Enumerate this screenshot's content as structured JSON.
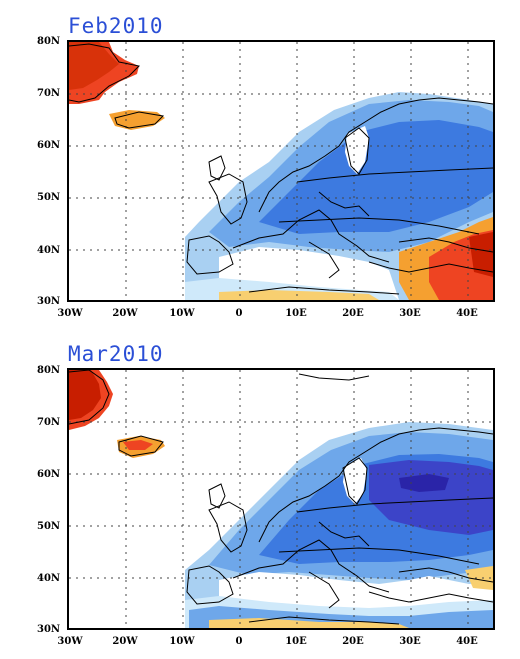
{
  "panels": [
    {
      "title": "Feb2010",
      "lat_labels": [
        "80N",
        "70N",
        "60N",
        "50N",
        "40N",
        "30N"
      ],
      "lon_labels": [
        "30W",
        "20W",
        "10W",
        "0",
        "10E",
        "20E",
        "30E",
        "40E"
      ]
    },
    {
      "title": "Mar2010",
      "lat_labels": [
        "80N",
        "70N",
        "60N",
        "50N",
        "40N",
        "30N"
      ],
      "lon_labels": [
        "30W",
        "20W",
        "10W",
        "0",
        "10E",
        "20E",
        "30E",
        "40E"
      ]
    }
  ],
  "colors": {
    "title": "#2b4fd6",
    "dark_red": "#c81e00",
    "red": "#ee4422",
    "orange": "#f5a030",
    "light_orange": "#f8cf70",
    "very_light_blue": "#cfe9fa",
    "light_blue": "#a9d0f2",
    "blue": "#6ea7ea",
    "mid_blue": "#3d7ae0",
    "dark_blue": "#3c44c8",
    "darkest_blue": "#2a24a8",
    "grid": "#444444",
    "coast": "#000000"
  }
}
